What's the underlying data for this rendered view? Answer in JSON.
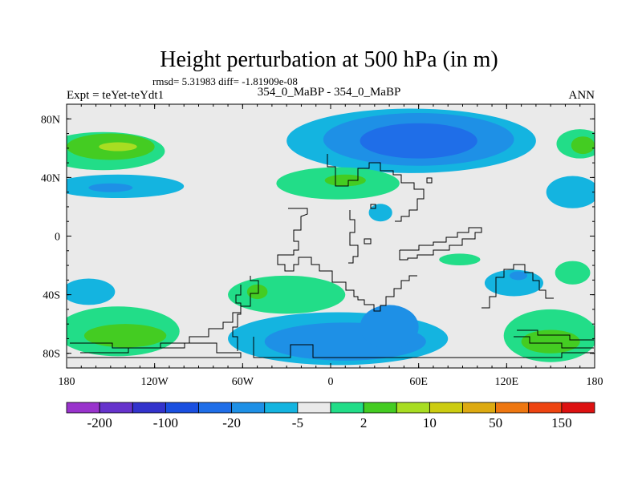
{
  "chart_data": {
    "type": "heatmap",
    "title": "Height perturbation at 500 hPa (in m)",
    "stats": "rmsd= 5.31983 diff= -1.81909e-08",
    "left_label": "Expt = teYet-teYdt1",
    "center_label": "354_0_MaBP - 354_0_MaBP",
    "right_label": "ANN",
    "x_ticks": [
      {
        "value": -180,
        "label": "180"
      },
      {
        "value": -120,
        "label": "120W"
      },
      {
        "value": -60,
        "label": "60W"
      },
      {
        "value": 0,
        "label": "0"
      },
      {
        "value": 60,
        "label": "60E"
      },
      {
        "value": 120,
        "label": "120E"
      },
      {
        "value": 180,
        "label": "180"
      }
    ],
    "y_ticks": [
      {
        "value": 80,
        "label": "80N"
      },
      {
        "value": 40,
        "label": "40N"
      },
      {
        "value": 0,
        "label": "0"
      },
      {
        "value": -40,
        "label": "40S"
      },
      {
        "value": -80,
        "label": "80S"
      }
    ],
    "xlim": [
      -180,
      180
    ],
    "ylim": [
      -90,
      90
    ],
    "colorbar": {
      "colors": [
        "#9933cc",
        "#6633cc",
        "#3333cc",
        "#1a4fe0",
        "#1f6ee8",
        "#1e90e6",
        "#14b4e0",
        "#eaeaea",
        "#22dd88",
        "#44cc22",
        "#a8dd22",
        "#cccc11",
        "#ddaa11",
        "#ee7711",
        "#ee4411",
        "#dd1111"
      ],
      "labels": [
        {
          "boundary": 1,
          "text": "-200"
        },
        {
          "boundary": 3,
          "text": "-100"
        },
        {
          "boundary": 5,
          "text": "-20"
        },
        {
          "boundary": 7,
          "text": "-5"
        },
        {
          "boundary": 9,
          "text": "2"
        },
        {
          "boundary": 11,
          "text": "10"
        },
        {
          "boundary": 13,
          "text": "50"
        },
        {
          "boundary": 15,
          "text": "150"
        }
      ]
    },
    "field_regions": [
      {
        "name": "nh-pacific-positive",
        "lon": -155,
        "lat": 58,
        "rlon": 42,
        "rlat": 13,
        "level": 1
      },
      {
        "name": "nh-pacific-positive",
        "lon": -150,
        "lat": 61,
        "rlon": 30,
        "rlat": 9,
        "level": 2
      },
      {
        "name": "nh-pacific-positive",
        "lon": -145,
        "lat": 61,
        "rlon": 13,
        "rlat": 3,
        "level": 3
      },
      {
        "name": "nh-pacific-negative",
        "lon": -145,
        "lat": 34,
        "rlon": 45,
        "rlat": 8,
        "level": -1
      },
      {
        "name": "nh-pacific-negative",
        "lon": -150,
        "lat": 33,
        "rlon": 15,
        "rlat": 3,
        "level": -2
      },
      {
        "name": "nh-atlantic-negative",
        "lon": 55,
        "lat": 65,
        "rlon": 85,
        "rlat": 22,
        "level": -1
      },
      {
        "name": "nh-atlantic-negative",
        "lon": 60,
        "lat": 66,
        "rlon": 65,
        "rlat": 18,
        "level": -2
      },
      {
        "name": "nh-atlantic-negative",
        "lon": 60,
        "lat": 65,
        "rlon": 40,
        "rlat": 12,
        "level": -3
      },
      {
        "name": "nh-eurasia-positive",
        "lon": 5,
        "lat": 36,
        "rlon": 42,
        "rlat": 11,
        "level": 1
      },
      {
        "name": "nh-eurasia-positive",
        "lon": 10,
        "lat": 38,
        "rlon": 14,
        "rlat": 4,
        "level": 2
      },
      {
        "name": "nh-pacific-east-negative",
        "lon": 165,
        "lat": 30,
        "rlon": 18,
        "rlat": 11,
        "level": -1
      },
      {
        "name": "nh-dateline-positive",
        "lon": 170,
        "lat": 63,
        "rlon": 16,
        "rlat": 10,
        "level": 1
      },
      {
        "name": "nh-dateline-positive",
        "lon": 172,
        "lat": 62,
        "rlon": 8,
        "rlat": 6,
        "level": 2
      },
      {
        "name": "nh-small-negative",
        "lon": 34,
        "lat": 16,
        "rlon": 8,
        "rlat": 6,
        "level": -1
      },
      {
        "name": "sh-pacific-positive",
        "lon": -145,
        "lat": -65,
        "rlon": 42,
        "rlat": 17,
        "level": 1
      },
      {
        "name": "sh-pacific-positive",
        "lon": -140,
        "lat": -68,
        "rlon": 28,
        "rlat": 8,
        "level": 2
      },
      {
        "name": "sh-pacific-negative",
        "lon": -165,
        "lat": -38,
        "rlon": 18,
        "rlat": 9,
        "level": -1
      },
      {
        "name": "sh-atlantic-positive",
        "lon": -30,
        "lat": -40,
        "rlon": 40,
        "rlat": 13,
        "level": 1
      },
      {
        "name": "sh-atlantic-positive",
        "lon": -50,
        "lat": -38,
        "rlon": 7,
        "rlat": 5,
        "level": 2
      },
      {
        "name": "sh-southern-negative",
        "lon": 5,
        "lat": -70,
        "rlon": 75,
        "rlat": 18,
        "level": -1
      },
      {
        "name": "sh-southern-negative",
        "lon": 10,
        "lat": -72,
        "rlon": 55,
        "rlat": 13,
        "level": -2
      },
      {
        "name": "sh-southern-negative",
        "lon": 40,
        "lat": -62,
        "rlon": 20,
        "rlat": 15,
        "level": -2
      },
      {
        "name": "sh-indian-positive",
        "lon": 150,
        "lat": -68,
        "rlon": 32,
        "rlat": 18,
        "level": 1
      },
      {
        "name": "sh-indian-positive",
        "lon": 150,
        "lat": -72,
        "rlon": 20,
        "rlat": 8,
        "level": 2
      },
      {
        "name": "sh-indian-negative",
        "lon": 125,
        "lat": -32,
        "rlon": 20,
        "rlat": 9,
        "level": -1
      },
      {
        "name": "sh-indian-negative-core",
        "lon": 128,
        "lat": -27,
        "rlon": 6,
        "rlat": 3,
        "level": -2
      },
      {
        "name": "sh-east-positive",
        "lon": 165,
        "lat": -25,
        "rlon": 12,
        "rlat": 8,
        "level": 1
      },
      {
        "name": "sh-middle-positive",
        "lon": 88,
        "lat": -16,
        "rlon": 14,
        "rlat": 4,
        "level": 1
      }
    ]
  }
}
